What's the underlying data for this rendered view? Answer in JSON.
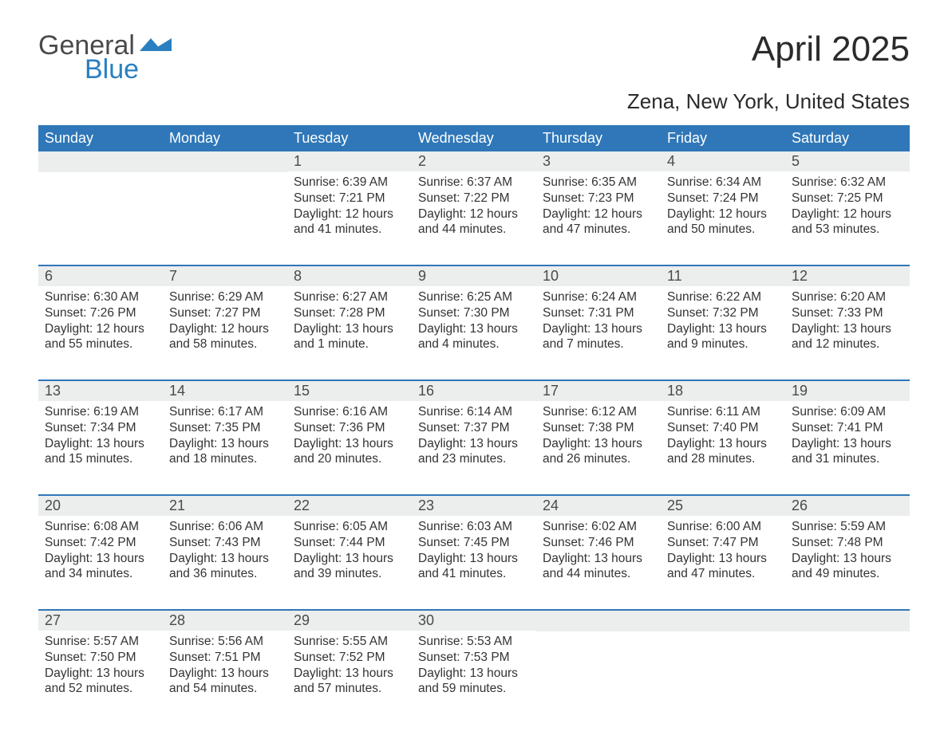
{
  "logo": {
    "general": "General",
    "blue": "Blue"
  },
  "title": "April 2025",
  "location": "Zena, New York, United States",
  "colors": {
    "header_bg": "#2f77b8",
    "header_text": "#ffffff",
    "daynum_bg": "#eceded",
    "week_border": "#2f77b8",
    "text": "#333333",
    "logo_blue": "#2a7fc0",
    "logo_gray": "#4a4a4a",
    "page_bg": "#ffffff"
  },
  "days_of_week": [
    "Sunday",
    "Monday",
    "Tuesday",
    "Wednesday",
    "Thursday",
    "Friday",
    "Saturday"
  ],
  "weeks": [
    [
      {
        "n": "",
        "sunrise": "",
        "sunset": "",
        "daylight": ""
      },
      {
        "n": "",
        "sunrise": "",
        "sunset": "",
        "daylight": ""
      },
      {
        "n": "1",
        "sunrise": "Sunrise: 6:39 AM",
        "sunset": "Sunset: 7:21 PM",
        "daylight": "Daylight: 12 hours and 41 minutes."
      },
      {
        "n": "2",
        "sunrise": "Sunrise: 6:37 AM",
        "sunset": "Sunset: 7:22 PM",
        "daylight": "Daylight: 12 hours and 44 minutes."
      },
      {
        "n": "3",
        "sunrise": "Sunrise: 6:35 AM",
        "sunset": "Sunset: 7:23 PM",
        "daylight": "Daylight: 12 hours and 47 minutes."
      },
      {
        "n": "4",
        "sunrise": "Sunrise: 6:34 AM",
        "sunset": "Sunset: 7:24 PM",
        "daylight": "Daylight: 12 hours and 50 minutes."
      },
      {
        "n": "5",
        "sunrise": "Sunrise: 6:32 AM",
        "sunset": "Sunset: 7:25 PM",
        "daylight": "Daylight: 12 hours and 53 minutes."
      }
    ],
    [
      {
        "n": "6",
        "sunrise": "Sunrise: 6:30 AM",
        "sunset": "Sunset: 7:26 PM",
        "daylight": "Daylight: 12 hours and 55 minutes."
      },
      {
        "n": "7",
        "sunrise": "Sunrise: 6:29 AM",
        "sunset": "Sunset: 7:27 PM",
        "daylight": "Daylight: 12 hours and 58 minutes."
      },
      {
        "n": "8",
        "sunrise": "Sunrise: 6:27 AM",
        "sunset": "Sunset: 7:28 PM",
        "daylight": "Daylight: 13 hours and 1 minute."
      },
      {
        "n": "9",
        "sunrise": "Sunrise: 6:25 AM",
        "sunset": "Sunset: 7:30 PM",
        "daylight": "Daylight: 13 hours and 4 minutes."
      },
      {
        "n": "10",
        "sunrise": "Sunrise: 6:24 AM",
        "sunset": "Sunset: 7:31 PM",
        "daylight": "Daylight: 13 hours and 7 minutes."
      },
      {
        "n": "11",
        "sunrise": "Sunrise: 6:22 AM",
        "sunset": "Sunset: 7:32 PM",
        "daylight": "Daylight: 13 hours and 9 minutes."
      },
      {
        "n": "12",
        "sunrise": "Sunrise: 6:20 AM",
        "sunset": "Sunset: 7:33 PM",
        "daylight": "Daylight: 13 hours and 12 minutes."
      }
    ],
    [
      {
        "n": "13",
        "sunrise": "Sunrise: 6:19 AM",
        "sunset": "Sunset: 7:34 PM",
        "daylight": "Daylight: 13 hours and 15 minutes."
      },
      {
        "n": "14",
        "sunrise": "Sunrise: 6:17 AM",
        "sunset": "Sunset: 7:35 PM",
        "daylight": "Daylight: 13 hours and 18 minutes."
      },
      {
        "n": "15",
        "sunrise": "Sunrise: 6:16 AM",
        "sunset": "Sunset: 7:36 PM",
        "daylight": "Daylight: 13 hours and 20 minutes."
      },
      {
        "n": "16",
        "sunrise": "Sunrise: 6:14 AM",
        "sunset": "Sunset: 7:37 PM",
        "daylight": "Daylight: 13 hours and 23 minutes."
      },
      {
        "n": "17",
        "sunrise": "Sunrise: 6:12 AM",
        "sunset": "Sunset: 7:38 PM",
        "daylight": "Daylight: 13 hours and 26 minutes."
      },
      {
        "n": "18",
        "sunrise": "Sunrise: 6:11 AM",
        "sunset": "Sunset: 7:40 PM",
        "daylight": "Daylight: 13 hours and 28 minutes."
      },
      {
        "n": "19",
        "sunrise": "Sunrise: 6:09 AM",
        "sunset": "Sunset: 7:41 PM",
        "daylight": "Daylight: 13 hours and 31 minutes."
      }
    ],
    [
      {
        "n": "20",
        "sunrise": "Sunrise: 6:08 AM",
        "sunset": "Sunset: 7:42 PM",
        "daylight": "Daylight: 13 hours and 34 minutes."
      },
      {
        "n": "21",
        "sunrise": "Sunrise: 6:06 AM",
        "sunset": "Sunset: 7:43 PM",
        "daylight": "Daylight: 13 hours and 36 minutes."
      },
      {
        "n": "22",
        "sunrise": "Sunrise: 6:05 AM",
        "sunset": "Sunset: 7:44 PM",
        "daylight": "Daylight: 13 hours and 39 minutes."
      },
      {
        "n": "23",
        "sunrise": "Sunrise: 6:03 AM",
        "sunset": "Sunset: 7:45 PM",
        "daylight": "Daylight: 13 hours and 41 minutes."
      },
      {
        "n": "24",
        "sunrise": "Sunrise: 6:02 AM",
        "sunset": "Sunset: 7:46 PM",
        "daylight": "Daylight: 13 hours and 44 minutes."
      },
      {
        "n": "25",
        "sunrise": "Sunrise: 6:00 AM",
        "sunset": "Sunset: 7:47 PM",
        "daylight": "Daylight: 13 hours and 47 minutes."
      },
      {
        "n": "26",
        "sunrise": "Sunrise: 5:59 AM",
        "sunset": "Sunset: 7:48 PM",
        "daylight": "Daylight: 13 hours and 49 minutes."
      }
    ],
    [
      {
        "n": "27",
        "sunrise": "Sunrise: 5:57 AM",
        "sunset": "Sunset: 7:50 PM",
        "daylight": "Daylight: 13 hours and 52 minutes."
      },
      {
        "n": "28",
        "sunrise": "Sunrise: 5:56 AM",
        "sunset": "Sunset: 7:51 PM",
        "daylight": "Daylight: 13 hours and 54 minutes."
      },
      {
        "n": "29",
        "sunrise": "Sunrise: 5:55 AM",
        "sunset": "Sunset: 7:52 PM",
        "daylight": "Daylight: 13 hours and 57 minutes."
      },
      {
        "n": "30",
        "sunrise": "Sunrise: 5:53 AM",
        "sunset": "Sunset: 7:53 PM",
        "daylight": "Daylight: 13 hours and 59 minutes."
      },
      {
        "n": "",
        "sunrise": "",
        "sunset": "",
        "daylight": ""
      },
      {
        "n": "",
        "sunrise": "",
        "sunset": "",
        "daylight": ""
      },
      {
        "n": "",
        "sunrise": "",
        "sunset": "",
        "daylight": ""
      }
    ]
  ]
}
